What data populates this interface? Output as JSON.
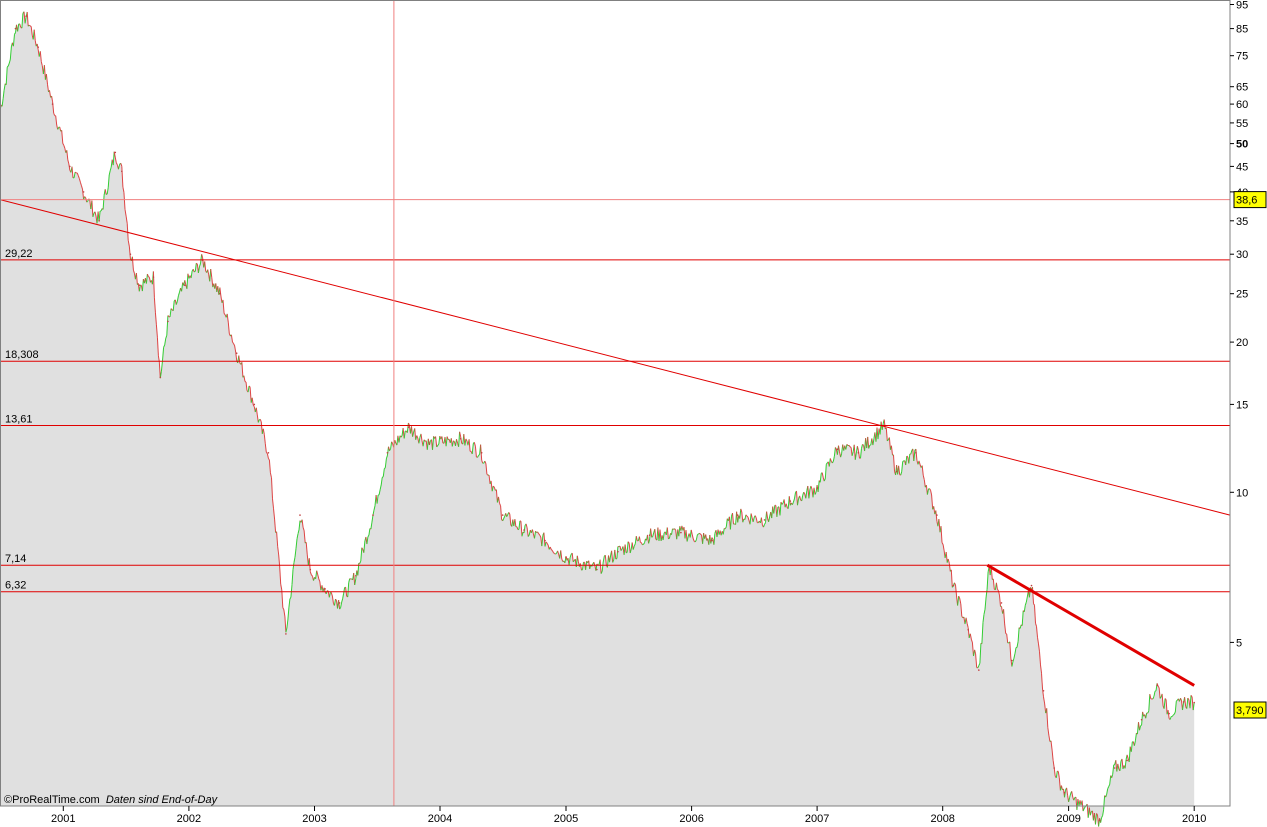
{
  "credit": {
    "source": "©ProRealTime.com",
    "note": "Daten sind End-of-Day"
  },
  "chart_data": {
    "type": "line",
    "style": "candlestick/area, log scale",
    "y_scale": "log",
    "ylim": [
      2.35,
      97
    ],
    "xlim": [
      "2000-07-01",
      "2010-04-15"
    ],
    "x_ticks": [
      "2001",
      "2002",
      "2003",
      "2004",
      "2005",
      "2006",
      "2007",
      "2008",
      "2009",
      "2010"
    ],
    "y_ticks": [
      95,
      85,
      75,
      65,
      60,
      55,
      50,
      45,
      40,
      35,
      30,
      25,
      20,
      15,
      10,
      5
    ],
    "y_tick_bold": [
      50
    ],
    "current_price_label": "3,790",
    "crosshair_label": "38,6",
    "crosshair_value": 38.6,
    "crosshair_date": "2003-08-20",
    "horizontal_levels": [
      {
        "value": 29.22,
        "label": "29,22"
      },
      {
        "value": 18.308,
        "label": "18,308"
      },
      {
        "value": 13.61,
        "label": "13,61"
      },
      {
        "value": 7.14,
        "label": "7,14"
      },
      {
        "value": 6.32,
        "label": "6,32"
      }
    ],
    "trendlines": [
      {
        "from": [
          "2000-07-01",
          38.6
        ],
        "to": [
          "2010-04-15",
          9.0
        ],
        "width": 1
      },
      {
        "from": [
          "2008-05-10",
          7.14
        ],
        "to": [
          "2010-01-01",
          4.1
        ],
        "width": 3
      }
    ],
    "series": [
      {
        "values": [
          [
            "2000-07-01",
            58
          ],
          [
            "2000-08-15",
            85
          ],
          [
            "2000-09-15",
            90
          ],
          [
            "2000-10-20",
            78
          ],
          [
            "2000-12-01",
            60
          ],
          [
            "2001-01-20",
            45
          ],
          [
            "2001-03-01",
            40
          ],
          [
            "2001-04-15",
            35
          ],
          [
            "2001-06-01",
            48
          ],
          [
            "2001-06-20",
            44
          ],
          [
            "2001-07-15",
            30
          ],
          [
            "2001-08-10",
            26
          ],
          [
            "2001-09-20",
            27
          ],
          [
            "2001-10-10",
            17
          ],
          [
            "2001-11-01",
            22
          ],
          [
            "2001-12-20",
            26
          ],
          [
            "2002-02-10",
            29.2
          ],
          [
            "2002-04-01",
            25
          ],
          [
            "2002-05-20",
            19
          ],
          [
            "2002-07-10",
            15
          ],
          [
            "2002-08-20",
            12
          ],
          [
            "2002-10-10",
            5.2
          ],
          [
            "2002-11-20",
            9
          ],
          [
            "2002-12-20",
            7
          ],
          [
            "2003-02-01",
            6.4
          ],
          [
            "2003-03-15",
            6.0
          ],
          [
            "2003-05-01",
            6.8
          ],
          [
            "2003-06-20",
            9
          ],
          [
            "2003-08-01",
            12
          ],
          [
            "2003-10-01",
            13.5
          ],
          [
            "2003-12-01",
            12.5
          ],
          [
            "2004-03-01",
            12.8
          ],
          [
            "2004-05-01",
            12
          ],
          [
            "2004-07-01",
            9
          ],
          [
            "2004-09-01",
            8.4
          ],
          [
            "2004-11-01",
            8.0
          ],
          [
            "2005-01-01",
            7.4
          ],
          [
            "2005-04-01",
            7.0
          ],
          [
            "2005-06-01",
            7.6
          ],
          [
            "2005-09-01",
            8.2
          ],
          [
            "2005-12-01",
            8.3
          ],
          [
            "2006-03-01",
            8.0
          ],
          [
            "2006-05-15",
            9.0
          ],
          [
            "2006-08-01",
            8.8
          ],
          [
            "2006-10-15",
            9.6
          ],
          [
            "2007-01-01",
            10.2
          ],
          [
            "2007-03-01",
            12.2
          ],
          [
            "2007-05-01",
            12.0
          ],
          [
            "2007-07-15",
            13.6
          ],
          [
            "2007-08-20",
            11.0
          ],
          [
            "2007-10-15",
            12.0
          ],
          [
            "2007-12-15",
            9.0
          ],
          [
            "2008-02-01",
            6.5
          ],
          [
            "2008-03-15",
            5.3
          ],
          [
            "2008-04-15",
            4.4
          ],
          [
            "2008-05-15",
            7.1
          ],
          [
            "2008-06-20",
            6.0
          ],
          [
            "2008-07-20",
            4.6
          ],
          [
            "2008-09-15",
            6.5
          ],
          [
            "2008-10-20",
            4.0
          ],
          [
            "2008-11-20",
            2.8
          ],
          [
            "2008-12-20",
            2.5
          ],
          [
            "2009-04-01",
            2.2
          ],
          [
            "2009-05-15",
            2.8
          ],
          [
            "2009-06-20",
            2.9
          ],
          [
            "2009-08-01",
            3.5
          ],
          [
            "2009-09-15",
            4.1
          ],
          [
            "2009-10-20",
            3.6
          ],
          [
            "2009-12-01",
            3.8
          ],
          [
            "2010-01-01",
            3.79
          ]
        ]
      }
    ]
  }
}
